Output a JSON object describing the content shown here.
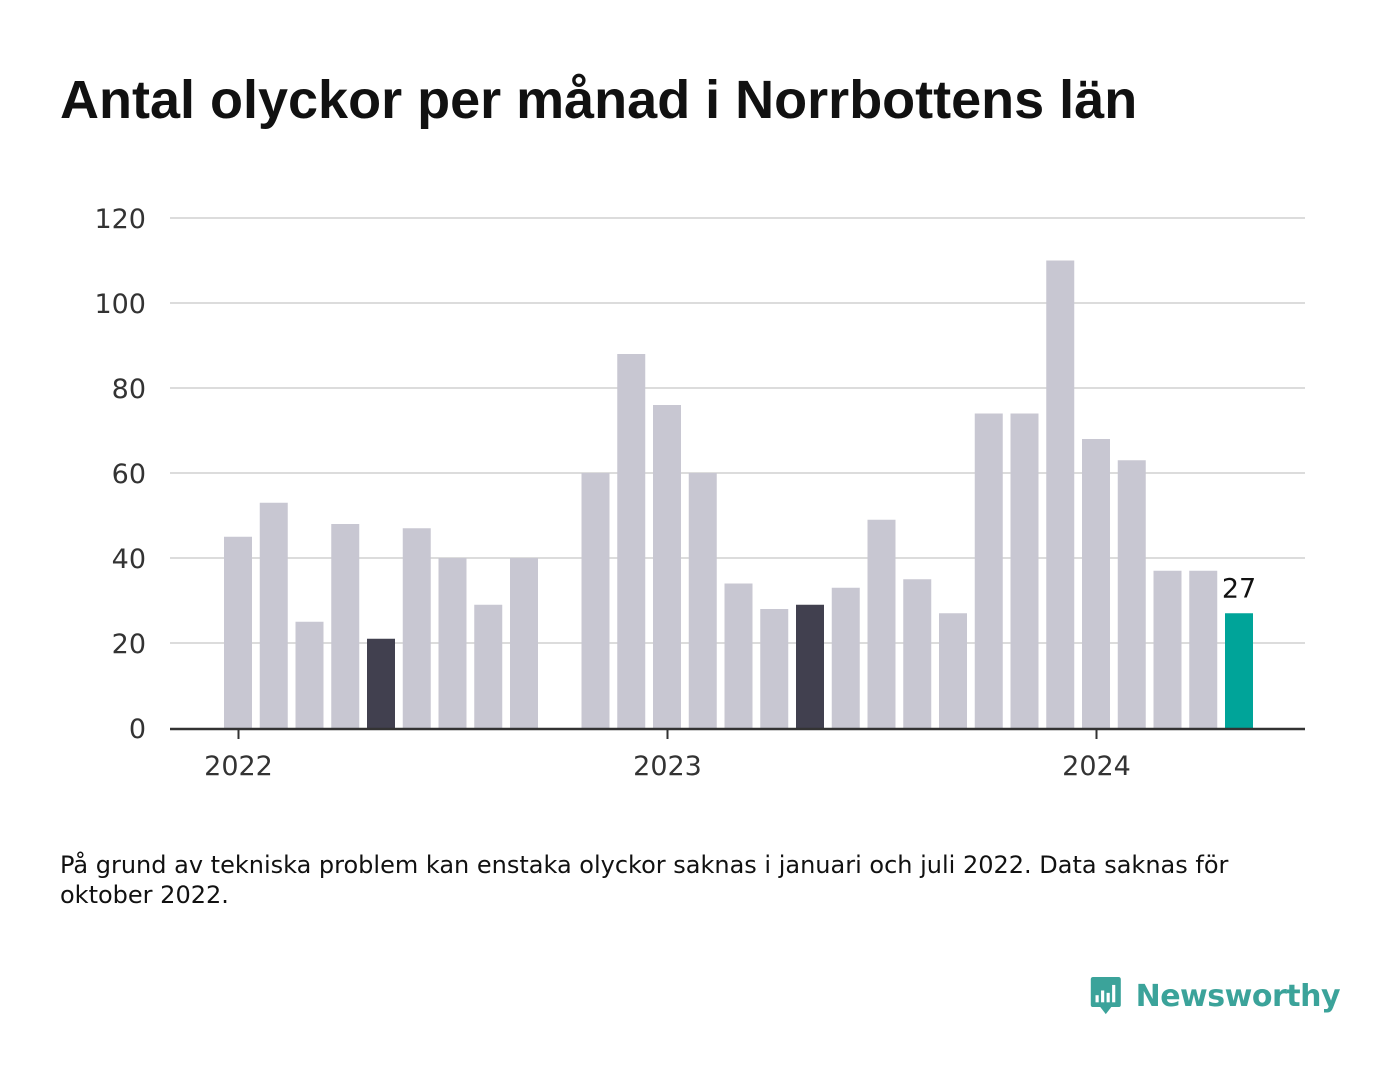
{
  "title": "Antal olyckor per månad i Norrbottens län",
  "footnote": "På grund av tekniska problem kan enstaka olyckor saknas i januari och juli 2022. Data saknas för oktober 2022.",
  "brand": {
    "name": "Newsworthy",
    "icon": "bar-chart-speech-bubble-icon",
    "color": "#3ba39a"
  },
  "colors": {
    "bar_default": "#c8c7d2",
    "bar_same_month": "#41404f",
    "bar_latest": "#00a499",
    "grid": "#dcdcdc",
    "axis": "#333333"
  },
  "chart_data": {
    "type": "bar",
    "title": "Antal olyckor per månad i Norrbottens län",
    "xlabel": "",
    "ylabel": "",
    "ylim": [
      0,
      120
    ],
    "y_ticks": [
      0,
      20,
      40,
      60,
      80,
      100,
      120
    ],
    "x_tick_labels": [
      "2022",
      "2023",
      "2024"
    ],
    "grid": true,
    "categories": [
      "2022-01",
      "2022-02",
      "2022-03",
      "2022-04",
      "2022-05",
      "2022-06",
      "2022-07",
      "2022-08",
      "2022-09",
      "2022-10",
      "2022-11",
      "2022-12",
      "2023-01",
      "2023-02",
      "2023-03",
      "2023-04",
      "2023-05",
      "2023-06",
      "2023-07",
      "2023-08",
      "2023-09",
      "2023-10",
      "2023-11",
      "2023-12",
      "2024-01",
      "2024-02",
      "2024-03",
      "2024-04",
      "2024-05"
    ],
    "values": [
      45,
      53,
      25,
      48,
      21,
      47,
      40,
      29,
      40,
      null,
      60,
      88,
      76,
      60,
      34,
      28,
      29,
      33,
      49,
      35,
      27,
      74,
      74,
      110,
      68,
      63,
      37,
      37,
      27
    ],
    "highlight": {
      "same_month": [
        "2022-05",
        "2023-05"
      ],
      "latest": "2024-05"
    },
    "data_labels": [
      {
        "category": "2024-05",
        "text": "27"
      }
    ]
  }
}
